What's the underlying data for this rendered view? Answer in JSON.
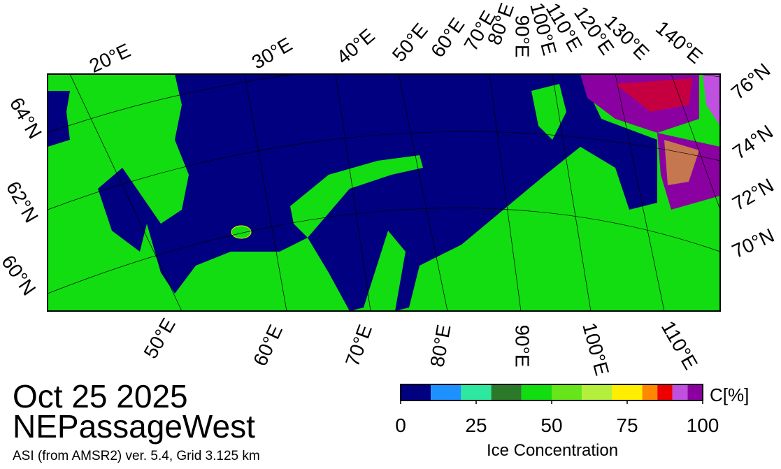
{
  "header": {
    "date": "Oct 25 2025",
    "region": "NEPassageWest",
    "source": "ASI (from AMSR2) ver. 5.4,  Grid 3.125 km"
  },
  "map": {
    "top_labels": [
      "20°E",
      "30°E",
      "40°E",
      "50°E",
      "60°E",
      "70°E",
      "80°E",
      "90°E",
      "100°E",
      "110°E",
      "120°E",
      "130°E",
      "140°E"
    ],
    "right_labels": [
      "76°N",
      "74°N",
      "72°N",
      "70°N"
    ],
    "left_labels": [
      "64°N",
      "62°N",
      "60°N"
    ],
    "bottom_labels": [
      "50°E",
      "60°E",
      "70°E",
      "80°E",
      "90°E",
      "100°E",
      "110°E"
    ]
  },
  "colorbar": {
    "unit_label": "C[%]",
    "title": "Ice Concentration",
    "lim": [
      0,
      100
    ],
    "ticks": [
      0,
      25,
      50,
      75,
      100
    ],
    "bounds": [
      0,
      10,
      20,
      30,
      40,
      50,
      60,
      70,
      80,
      85,
      90,
      95,
      100
    ],
    "colors": [
      "#000080",
      "#1e90ff",
      "#2ee8a0",
      "#2a7a2a",
      "#11dd11",
      "#66e61a",
      "#b4ef3c",
      "#ffee00",
      "#ff8800",
      "#ee0000",
      "#c050e0",
      "#8b00a0"
    ]
  }
}
